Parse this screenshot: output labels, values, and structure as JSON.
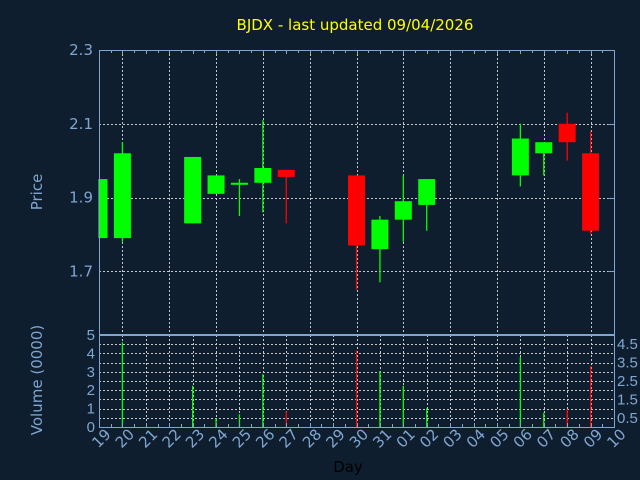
{
  "chart_data": {
    "type": "candlestick",
    "title": "BJDX - last updated 09/04/2026",
    "xlabel": "Day",
    "ylabel": "Price",
    "volume_label": "Volume (0000)",
    "x_ticks": [
      "19",
      "20",
      "21",
      "22",
      "23",
      "24",
      "25",
      "26",
      "27",
      "28",
      "29",
      "30",
      "31",
      "01",
      "02",
      "03",
      "04",
      "05",
      "06",
      "07",
      "08",
      "09",
      "10"
    ],
    "price_ticks": [
      "1.7",
      "1.9",
      "2.1",
      "2.3"
    ],
    "price_range": [
      1.53,
      2.3
    ],
    "volume_ticks": [
      "0",
      "0.5",
      "1",
      "1.5",
      "2",
      "2.5",
      "3",
      "3.5",
      "4",
      "4.5",
      "5"
    ],
    "volume_range": [
      0,
      5
    ],
    "grid": true,
    "colors": {
      "background": "#0f1e2f",
      "up": "#00ff00",
      "down": "#ff0000",
      "axis": "#7fa6d0",
      "grid": "#c8c8c8",
      "title": "#ffff00"
    },
    "candles": [
      {
        "day": "19",
        "open": 1.79,
        "high": 1.95,
        "low": 1.79,
        "close": 1.95,
        "volume": null
      },
      {
        "day": "20",
        "open": 1.79,
        "high": 2.05,
        "low": 1.78,
        "close": 2.02,
        "volume": 4.6
      },
      {
        "day": "23",
        "open": 1.83,
        "high": 2.01,
        "low": 1.83,
        "close": 2.01,
        "volume": 2.24
      },
      {
        "day": "24",
        "open": 1.91,
        "high": 1.96,
        "low": 1.91,
        "close": 1.96,
        "volume": 0.47
      },
      {
        "day": "25",
        "open": 1.935,
        "high": 1.95,
        "low": 1.85,
        "close": 1.94,
        "volume": 0.69
      },
      {
        "day": "26",
        "open": 1.94,
        "high": 2.11,
        "low": 1.86,
        "close": 1.98,
        "volume": 2.87
      },
      {
        "day": "27",
        "open": 1.975,
        "high": 1.975,
        "low": 1.83,
        "close": 1.956,
        "volume": 0.85
      },
      {
        "day": "30",
        "open": 1.96,
        "high": 1.96,
        "low": 1.65,
        "close": 1.77,
        "volume": 4.15
      },
      {
        "day": "31",
        "open": 1.76,
        "high": 1.85,
        "low": 1.67,
        "close": 1.84,
        "volume": 3.05
      },
      {
        "day": "01",
        "open": 1.84,
        "high": 1.96,
        "low": 1.78,
        "close": 1.89,
        "volume": 2.24
      },
      {
        "day": "02",
        "open": 1.88,
        "high": 1.95,
        "low": 1.81,
        "close": 1.95,
        "volume": 1.01
      },
      {
        "day": "06",
        "open": 1.96,
        "high": 2.1,
        "low": 1.93,
        "close": 2.06,
        "volume": 3.81
      },
      {
        "day": "07",
        "open": 2.02,
        "high": 2.05,
        "low": 1.96,
        "close": 2.05,
        "volume": 0.78
      },
      {
        "day": "08",
        "open": 2.1,
        "high": 2.13,
        "low": 2.0,
        "close": 2.05,
        "volume": 0.97
      },
      {
        "day": "09",
        "open": 2.02,
        "high": 2.08,
        "low": 1.8,
        "close": 1.81,
        "volume": 3.32
      }
    ]
  }
}
